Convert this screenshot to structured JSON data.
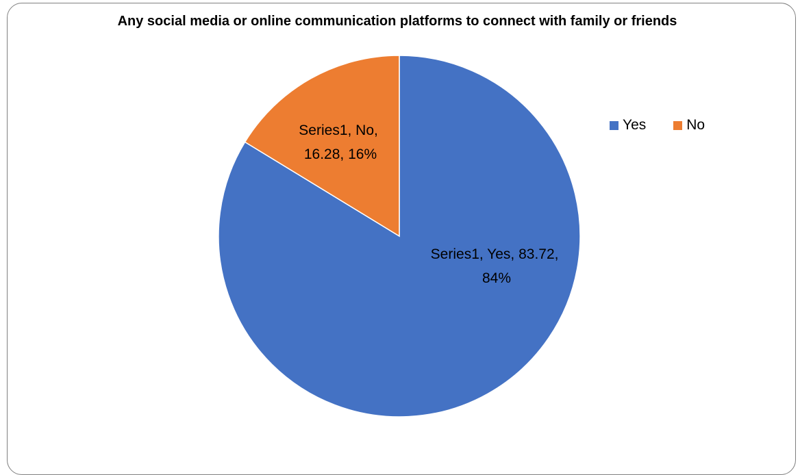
{
  "chart_data": {
    "type": "pie",
    "title": "Any social media or online communication platforms to connect with family or friends",
    "series_name": "Series1",
    "categories": [
      "Yes",
      "No"
    ],
    "values": [
      83.72,
      16.28
    ],
    "percent_labels": [
      "84%",
      "16%"
    ],
    "colors": [
      "#4472C4",
      "#ED7D31"
    ],
    "data_labels": [
      {
        "line1": "Series1, Yes, 83.72,",
        "line2": "84%"
      },
      {
        "line1": "Series1, No,",
        "line2": "16.28, 16%"
      }
    ],
    "legend": {
      "placement": "right",
      "entries": [
        {
          "label": "Yes",
          "color": "#4472C4"
        },
        {
          "label": "No",
          "color": "#ED7D31"
        }
      ]
    }
  }
}
